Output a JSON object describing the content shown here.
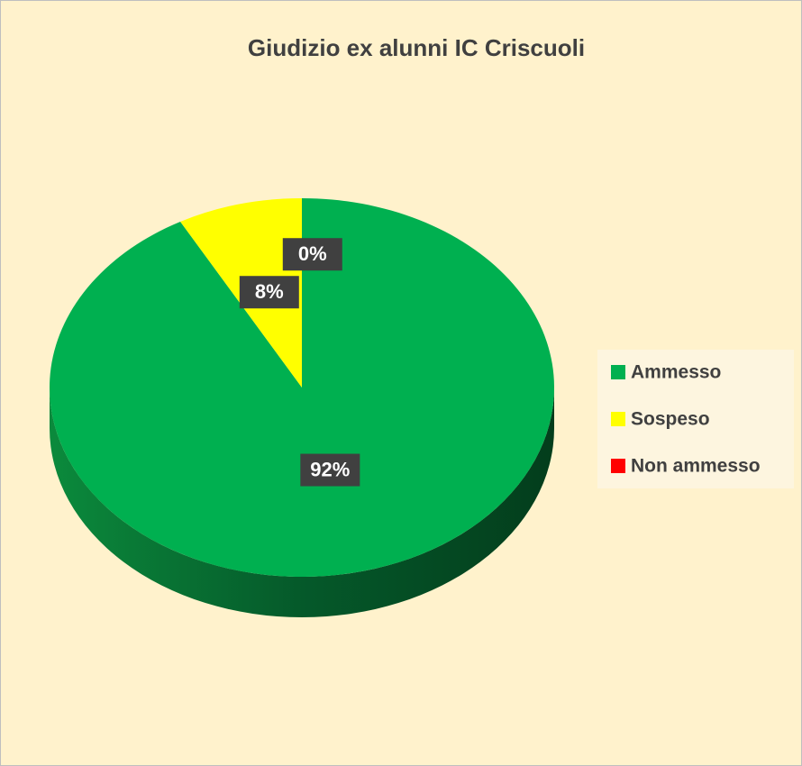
{
  "chart_data": {
    "type": "pie",
    "title": "Giudizio ex alunni IC Criscuoli",
    "categories": [
      "Ammesso",
      "Sospeso",
      "Non ammesso"
    ],
    "values": [
      92,
      8,
      0
    ],
    "value_labels": [
      "92%",
      "8%",
      "0%"
    ],
    "colors": [
      "#00b050",
      "#ffff00",
      "#ff0000"
    ],
    "legend": "right"
  }
}
